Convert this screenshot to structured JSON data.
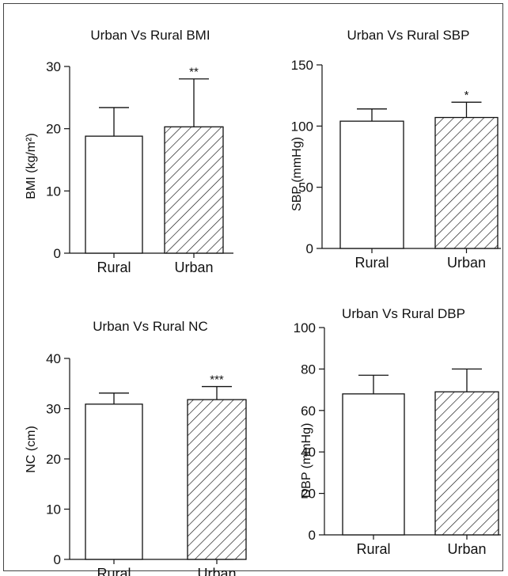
{
  "chart_data": [
    {
      "type": "bar",
      "title": "Urban Vs Rural BMI",
      "ylabel": "BMI (kg/m²)",
      "categories": [
        "Rural",
        "Urban"
      ],
      "values": [
        18.8,
        20.3
      ],
      "errors": [
        4.6,
        7.7
      ],
      "significance": [
        "",
        "**"
      ],
      "ylim": [
        0,
        30
      ],
      "yticks": [
        0,
        10,
        20,
        30
      ],
      "fills": [
        "plain",
        "hatched"
      ]
    },
    {
      "type": "bar",
      "title": "Urban Vs Rural SBP",
      "ylabel": "SBP (mmHg)",
      "categories": [
        "Rural",
        "Urban"
      ],
      "values": [
        104,
        107
      ],
      "errors": [
        10,
        12.5
      ],
      "significance": [
        "",
        "*"
      ],
      "ylim": [
        0,
        150
      ],
      "yticks": [
        0,
        50,
        100,
        150
      ],
      "fills": [
        "plain",
        "hatched"
      ]
    },
    {
      "type": "bar",
      "title": "Urban Vs Rural NC",
      "ylabel": "NC (cm)",
      "categories": [
        "Rural",
        "Urban"
      ],
      "values": [
        30.9,
        31.8
      ],
      "errors": [
        2.2,
        2.6
      ],
      "significance": [
        "",
        "***"
      ],
      "ylim": [
        0,
        40
      ],
      "yticks": [
        0,
        10,
        20,
        30,
        40
      ],
      "fills": [
        "plain",
        "hatched"
      ]
    },
    {
      "type": "bar",
      "title": "Urban Vs Rural DBP",
      "ylabel": "DBP (mmHg)",
      "categories": [
        "Rural",
        "Urban"
      ],
      "values": [
        68,
        69
      ],
      "errors": [
        9,
        11
      ],
      "significance": [
        "",
        ""
      ],
      "ylim": [
        0,
        100
      ],
      "yticks": [
        0,
        20,
        40,
        60,
        80,
        100
      ],
      "fills": [
        "plain",
        "hatched"
      ]
    }
  ]
}
